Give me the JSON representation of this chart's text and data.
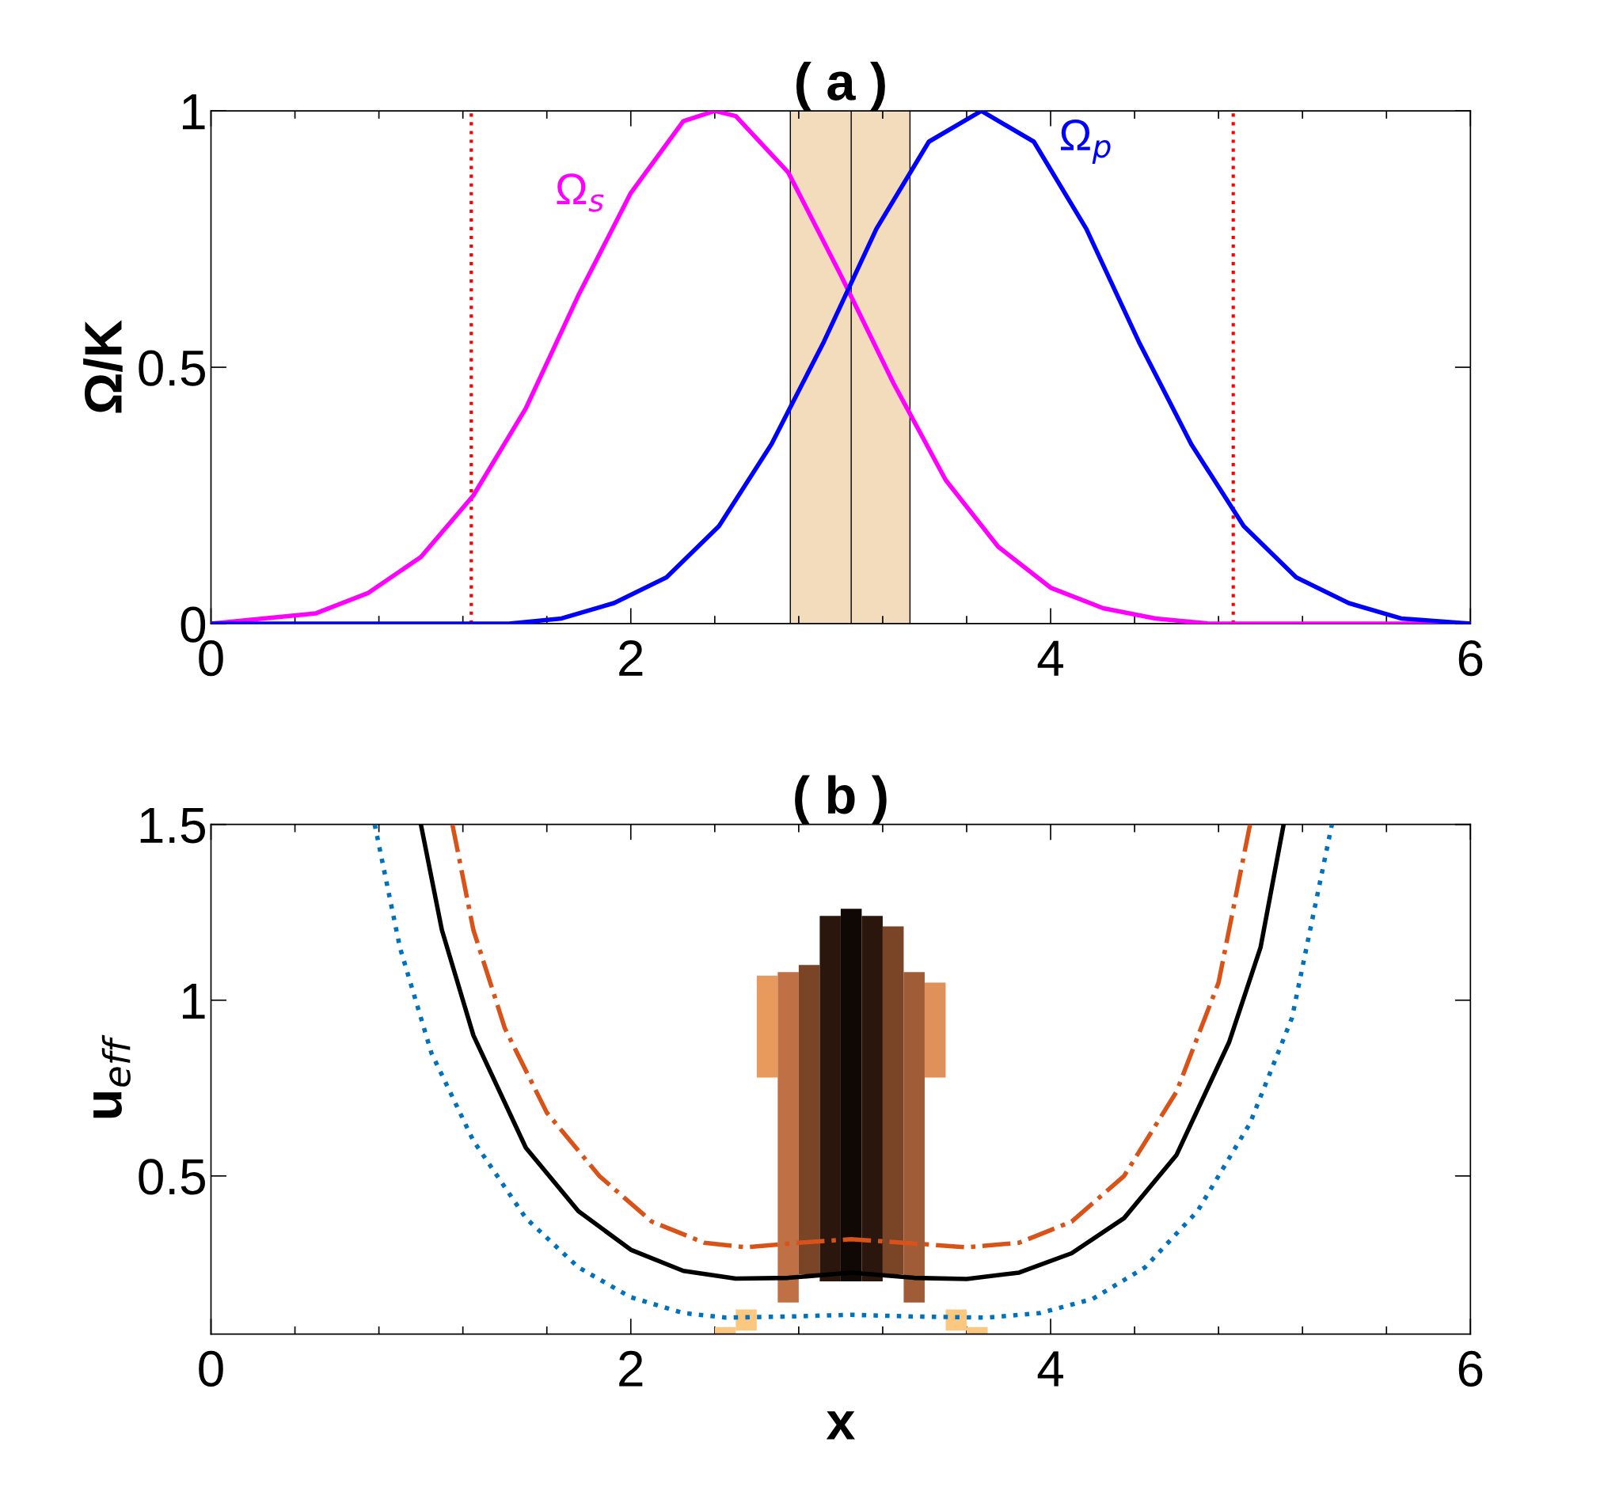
{
  "chart_data": [
    {
      "type": "line",
      "title": "( a )",
      "ylabel": "Ω/K",
      "xlim": [
        0,
        6
      ],
      "ylim": [
        0,
        1
      ],
      "xticks": [
        0,
        2,
        4,
        6
      ],
      "yticks": [
        0,
        0.5,
        1
      ],
      "grid": false,
      "legend": false,
      "series": [
        {
          "name": "Ω$_{s}$",
          "color": "#ff00ff",
          "line_style": "solid",
          "x": [
            0,
            0.25,
            0.5,
            0.75,
            1.0,
            1.25,
            1.5,
            1.75,
            2.0,
            2.25,
            2.4,
            2.5,
            2.75,
            3.0,
            3.25,
            3.5,
            3.75,
            4.0,
            4.25,
            4.5,
            4.75,
            5.0,
            5.5,
            6.0
          ],
          "values": [
            0.0,
            0.01,
            0.02,
            0.06,
            0.13,
            0.25,
            0.42,
            0.64,
            0.84,
            0.98,
            1.0,
            0.99,
            0.88,
            0.68,
            0.47,
            0.28,
            0.15,
            0.07,
            0.03,
            0.01,
            0.0,
            0.0,
            0.0,
            0.0
          ]
        },
        {
          "name": "Ω$_{p}$",
          "color": "#0000ff",
          "line_style": "solid",
          "x": [
            0,
            0.6,
            1.17,
            1.42,
            1.67,
            1.92,
            2.17,
            2.42,
            2.67,
            2.92,
            3.17,
            3.42,
            3.67,
            3.92,
            4.17,
            4.42,
            4.67,
            4.92,
            5.17,
            5.42,
            5.67,
            6.0
          ],
          "values": [
            0.0,
            0.0,
            0.0,
            0.0,
            0.01,
            0.04,
            0.09,
            0.19,
            0.35,
            0.55,
            0.77,
            0.94,
            1.0,
            0.94,
            0.77,
            0.55,
            0.35,
            0.19,
            0.09,
            0.04,
            0.01,
            0.0
          ]
        }
      ],
      "ref_lines": [
        {
          "axis": "x",
          "value": 1.24,
          "color": "#ff0000",
          "line_style": "dotted"
        },
        {
          "axis": "x",
          "value": 4.87,
          "color": "#ff0000",
          "line_style": "dotted"
        },
        {
          "axis": "x",
          "value": 3.05,
          "color": "#000000",
          "line_style": "solid"
        }
      ],
      "bands": [
        {
          "axis": "x",
          "from": 2.76,
          "to": 3.33,
          "color": "#f2dcbb"
        }
      ]
    },
    {
      "type": "line",
      "title": "( b )",
      "xlabel": "x",
      "ylabel": "u$_{eff}$",
      "xlim": [
        0,
        6
      ],
      "ylim": [
        0.05,
        1.5
      ],
      "xticks": [
        0,
        2,
        4,
        6
      ],
      "yticks": [
        0.5,
        1,
        1.5
      ],
      "grid": false,
      "legend": false,
      "series": [
        {
          "type": "bar",
          "x": [
            2.45,
            2.55,
            2.65,
            2.75,
            2.85,
            2.95,
            3.05,
            3.15,
            3.25,
            3.35,
            3.45,
            3.55,
            3.65
          ],
          "base": [
            0.05,
            0.06,
            0.78,
            0.14,
            0.22,
            0.2,
            0.2,
            0.2,
            0.22,
            0.14,
            0.78,
            0.06,
            0.05
          ],
          "values": [
            0.02,
            0.06,
            0.29,
            0.94,
            0.88,
            1.04,
            1.06,
            1.04,
            0.99,
            0.94,
            0.27,
            0.06,
            0.02
          ],
          "colors": [
            "#fcc880",
            "#fcc880",
            "#e89a5c",
            "#c07045",
            "#7a4427",
            "#2a160c",
            "#100804",
            "#2a160c",
            "#7a4427",
            "#a05c36",
            "#e0905a",
            "#fcc880",
            "#fcc880"
          ]
        },
        {
          "color": "#0072bd",
          "line_style": "dotted",
          "x": [
            0.78,
            0.9,
            1.05,
            1.25,
            1.5,
            1.75,
            2.0,
            2.25,
            2.45,
            2.75,
            3.05,
            3.35,
            3.7,
            3.95,
            4.2,
            4.45,
            4.7,
            4.95,
            5.15,
            5.34
          ],
          "values": [
            1.5,
            1.15,
            0.85,
            0.6,
            0.38,
            0.24,
            0.155,
            0.11,
            0.097,
            0.1,
            0.105,
            0.1,
            0.097,
            0.11,
            0.15,
            0.24,
            0.4,
            0.65,
            0.95,
            1.5
          ]
        },
        {
          "color": "#000000",
          "line_style": "solid",
          "x": [
            1.0,
            1.1,
            1.25,
            1.5,
            1.75,
            2.0,
            2.25,
            2.5,
            2.75,
            3.05,
            3.35,
            3.6,
            3.85,
            4.1,
            4.35,
            4.6,
            4.85,
            5.0,
            5.11
          ],
          "values": [
            1.5,
            1.2,
            0.9,
            0.58,
            0.4,
            0.29,
            0.23,
            0.208,
            0.21,
            0.225,
            0.21,
            0.207,
            0.225,
            0.28,
            0.38,
            0.56,
            0.88,
            1.15,
            1.5
          ]
        },
        {
          "color": "#d95319",
          "line_style": "dashdot",
          "x": [
            1.15,
            1.25,
            1.4,
            1.6,
            1.85,
            2.1,
            2.35,
            2.55,
            2.8,
            3.05,
            3.3,
            3.6,
            3.85,
            4.1,
            4.35,
            4.6,
            4.8,
            4.95
          ],
          "values": [
            1.5,
            1.2,
            0.92,
            0.68,
            0.5,
            0.37,
            0.31,
            0.297,
            0.31,
            0.32,
            0.31,
            0.297,
            0.31,
            0.37,
            0.5,
            0.74,
            1.05,
            1.5
          ]
        }
      ]
    }
  ]
}
